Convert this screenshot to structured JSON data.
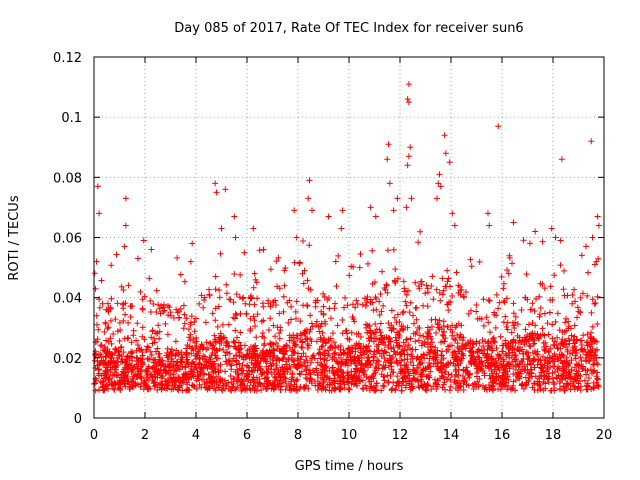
{
  "colors": {
    "marker": "#ff0000",
    "grid": "#a0a0a0",
    "axis": "#000000"
  },
  "chart_data": {
    "type": "scatter",
    "title": "Day 085 of 2017, Rate Of TEC Index for receiver sun6",
    "xlabel": "GPS time / hours",
    "ylabel": "ROTI / TECUs",
    "xlim": [
      0,
      20
    ],
    "ylim": [
      0,
      0.12
    ],
    "grid": true,
    "marker": "+",
    "xticks": [
      "0",
      "2",
      "4",
      "6",
      "8",
      "10",
      "12",
      "14",
      "16",
      "18",
      "20"
    ],
    "yticks": [
      "0",
      "0.02",
      "0.04",
      "0.06",
      "0.08",
      "0.1",
      "0.12"
    ],
    "data_extent_hours": [
      0,
      19.8
    ],
    "typical_band": [
      0.005,
      0.035
    ],
    "outliers": [
      {
        "x": 0.15,
        "y": 0.077
      },
      {
        "x": 0.2,
        "y": 0.068
      },
      {
        "x": 0.1,
        "y": 0.052
      },
      {
        "x": 1.25,
        "y": 0.073
      },
      {
        "x": 1.25,
        "y": 0.064
      },
      {
        "x": 1.2,
        "y": 0.057
      },
      {
        "x": 1.95,
        "y": 0.059
      },
      {
        "x": 2.25,
        "y": 0.056
      },
      {
        "x": 3.85,
        "y": 0.058
      },
      {
        "x": 3.8,
        "y": 0.052
      },
      {
        "x": 4.75,
        "y": 0.078
      },
      {
        "x": 4.8,
        "y": 0.075
      },
      {
        "x": 5.15,
        "y": 0.076
      },
      {
        "x": 5.0,
        "y": 0.063
      },
      {
        "x": 5.5,
        "y": 0.067
      },
      {
        "x": 5.55,
        "y": 0.06
      },
      {
        "x": 6.25,
        "y": 0.063
      },
      {
        "x": 6.65,
        "y": 0.056
      },
      {
        "x": 7.85,
        "y": 0.069
      },
      {
        "x": 7.95,
        "y": 0.06
      },
      {
        "x": 8.45,
        "y": 0.079
      },
      {
        "x": 8.55,
        "y": 0.069
      },
      {
        "x": 8.4,
        "y": 0.073
      },
      {
        "x": 9.2,
        "y": 0.067
      },
      {
        "x": 9.75,
        "y": 0.069
      },
      {
        "x": 9.7,
        "y": 0.063
      },
      {
        "x": 10.85,
        "y": 0.07
      },
      {
        "x": 11.05,
        "y": 0.067
      },
      {
        "x": 11.55,
        "y": 0.091
      },
      {
        "x": 11.5,
        "y": 0.086
      },
      {
        "x": 11.6,
        "y": 0.078
      },
      {
        "x": 11.75,
        "y": 0.069
      },
      {
        "x": 11.9,
        "y": 0.073
      },
      {
        "x": 12.35,
        "y": 0.111
      },
      {
        "x": 12.3,
        "y": 0.106
      },
      {
        "x": 12.35,
        "y": 0.105
      },
      {
        "x": 12.4,
        "y": 0.09
      },
      {
        "x": 12.35,
        "y": 0.087
      },
      {
        "x": 12.3,
        "y": 0.084
      },
      {
        "x": 12.45,
        "y": 0.073
      },
      {
        "x": 12.25,
        "y": 0.07
      },
      {
        "x": 13.55,
        "y": 0.081
      },
      {
        "x": 13.5,
        "y": 0.078
      },
      {
        "x": 13.6,
        "y": 0.077
      },
      {
        "x": 13.75,
        "y": 0.094
      },
      {
        "x": 13.8,
        "y": 0.088
      },
      {
        "x": 13.95,
        "y": 0.085
      },
      {
        "x": 13.45,
        "y": 0.073
      },
      {
        "x": 14.05,
        "y": 0.068
      },
      {
        "x": 14.15,
        "y": 0.064
      },
      {
        "x": 15.45,
        "y": 0.068
      },
      {
        "x": 15.5,
        "y": 0.064
      },
      {
        "x": 15.85,
        "y": 0.097
      },
      {
        "x": 16.45,
        "y": 0.065
      },
      {
        "x": 17.3,
        "y": 0.062
      },
      {
        "x": 17.95,
        "y": 0.063
      },
      {
        "x": 18.1,
        "y": 0.06
      },
      {
        "x": 18.35,
        "y": 0.086
      },
      {
        "x": 18.3,
        "y": 0.059
      },
      {
        "x": 19.5,
        "y": 0.092
      },
      {
        "x": 19.75,
        "y": 0.067
      },
      {
        "x": 19.8,
        "y": 0.064
      },
      {
        "x": 19.55,
        "y": 0.06
      },
      {
        "x": 19.7,
        "y": 0.052
      }
    ],
    "activity_profile": [
      {
        "x": 0.0,
        "y": 0.028
      },
      {
        "x": 0.5,
        "y": 0.022
      },
      {
        "x": 1.0,
        "y": 0.023
      },
      {
        "x": 1.5,
        "y": 0.022
      },
      {
        "x": 2.0,
        "y": 0.024
      },
      {
        "x": 2.5,
        "y": 0.022
      },
      {
        "x": 3.0,
        "y": 0.022
      },
      {
        "x": 3.5,
        "y": 0.023
      },
      {
        "x": 4.0,
        "y": 0.025
      },
      {
        "x": 4.5,
        "y": 0.026
      },
      {
        "x": 5.0,
        "y": 0.027
      },
      {
        "x": 5.5,
        "y": 0.026
      },
      {
        "x": 6.0,
        "y": 0.025
      },
      {
        "x": 6.5,
        "y": 0.024
      },
      {
        "x": 7.0,
        "y": 0.025
      },
      {
        "x": 7.5,
        "y": 0.025
      },
      {
        "x": 8.0,
        "y": 0.028
      },
      {
        "x": 8.5,
        "y": 0.033
      },
      {
        "x": 9.0,
        "y": 0.027
      },
      {
        "x": 9.5,
        "y": 0.024
      },
      {
        "x": 10.0,
        "y": 0.024
      },
      {
        "x": 10.5,
        "y": 0.025
      },
      {
        "x": 11.0,
        "y": 0.03
      },
      {
        "x": 11.5,
        "y": 0.031
      },
      {
        "x": 12.0,
        "y": 0.031
      },
      {
        "x": 12.5,
        "y": 0.03
      },
      {
        "x": 13.0,
        "y": 0.03
      },
      {
        "x": 13.5,
        "y": 0.032
      },
      {
        "x": 14.0,
        "y": 0.03
      },
      {
        "x": 14.5,
        "y": 0.027
      },
      {
        "x": 15.0,
        "y": 0.026
      },
      {
        "x": 15.5,
        "y": 0.026
      },
      {
        "x": 16.0,
        "y": 0.025
      },
      {
        "x": 16.5,
        "y": 0.026
      },
      {
        "x": 17.0,
        "y": 0.028
      },
      {
        "x": 17.5,
        "y": 0.029
      },
      {
        "x": 18.0,
        "y": 0.028
      },
      {
        "x": 18.5,
        "y": 0.027
      },
      {
        "x": 19.0,
        "y": 0.026
      },
      {
        "x": 19.5,
        "y": 0.027
      },
      {
        "x": 19.8,
        "y": 0.025
      }
    ]
  }
}
